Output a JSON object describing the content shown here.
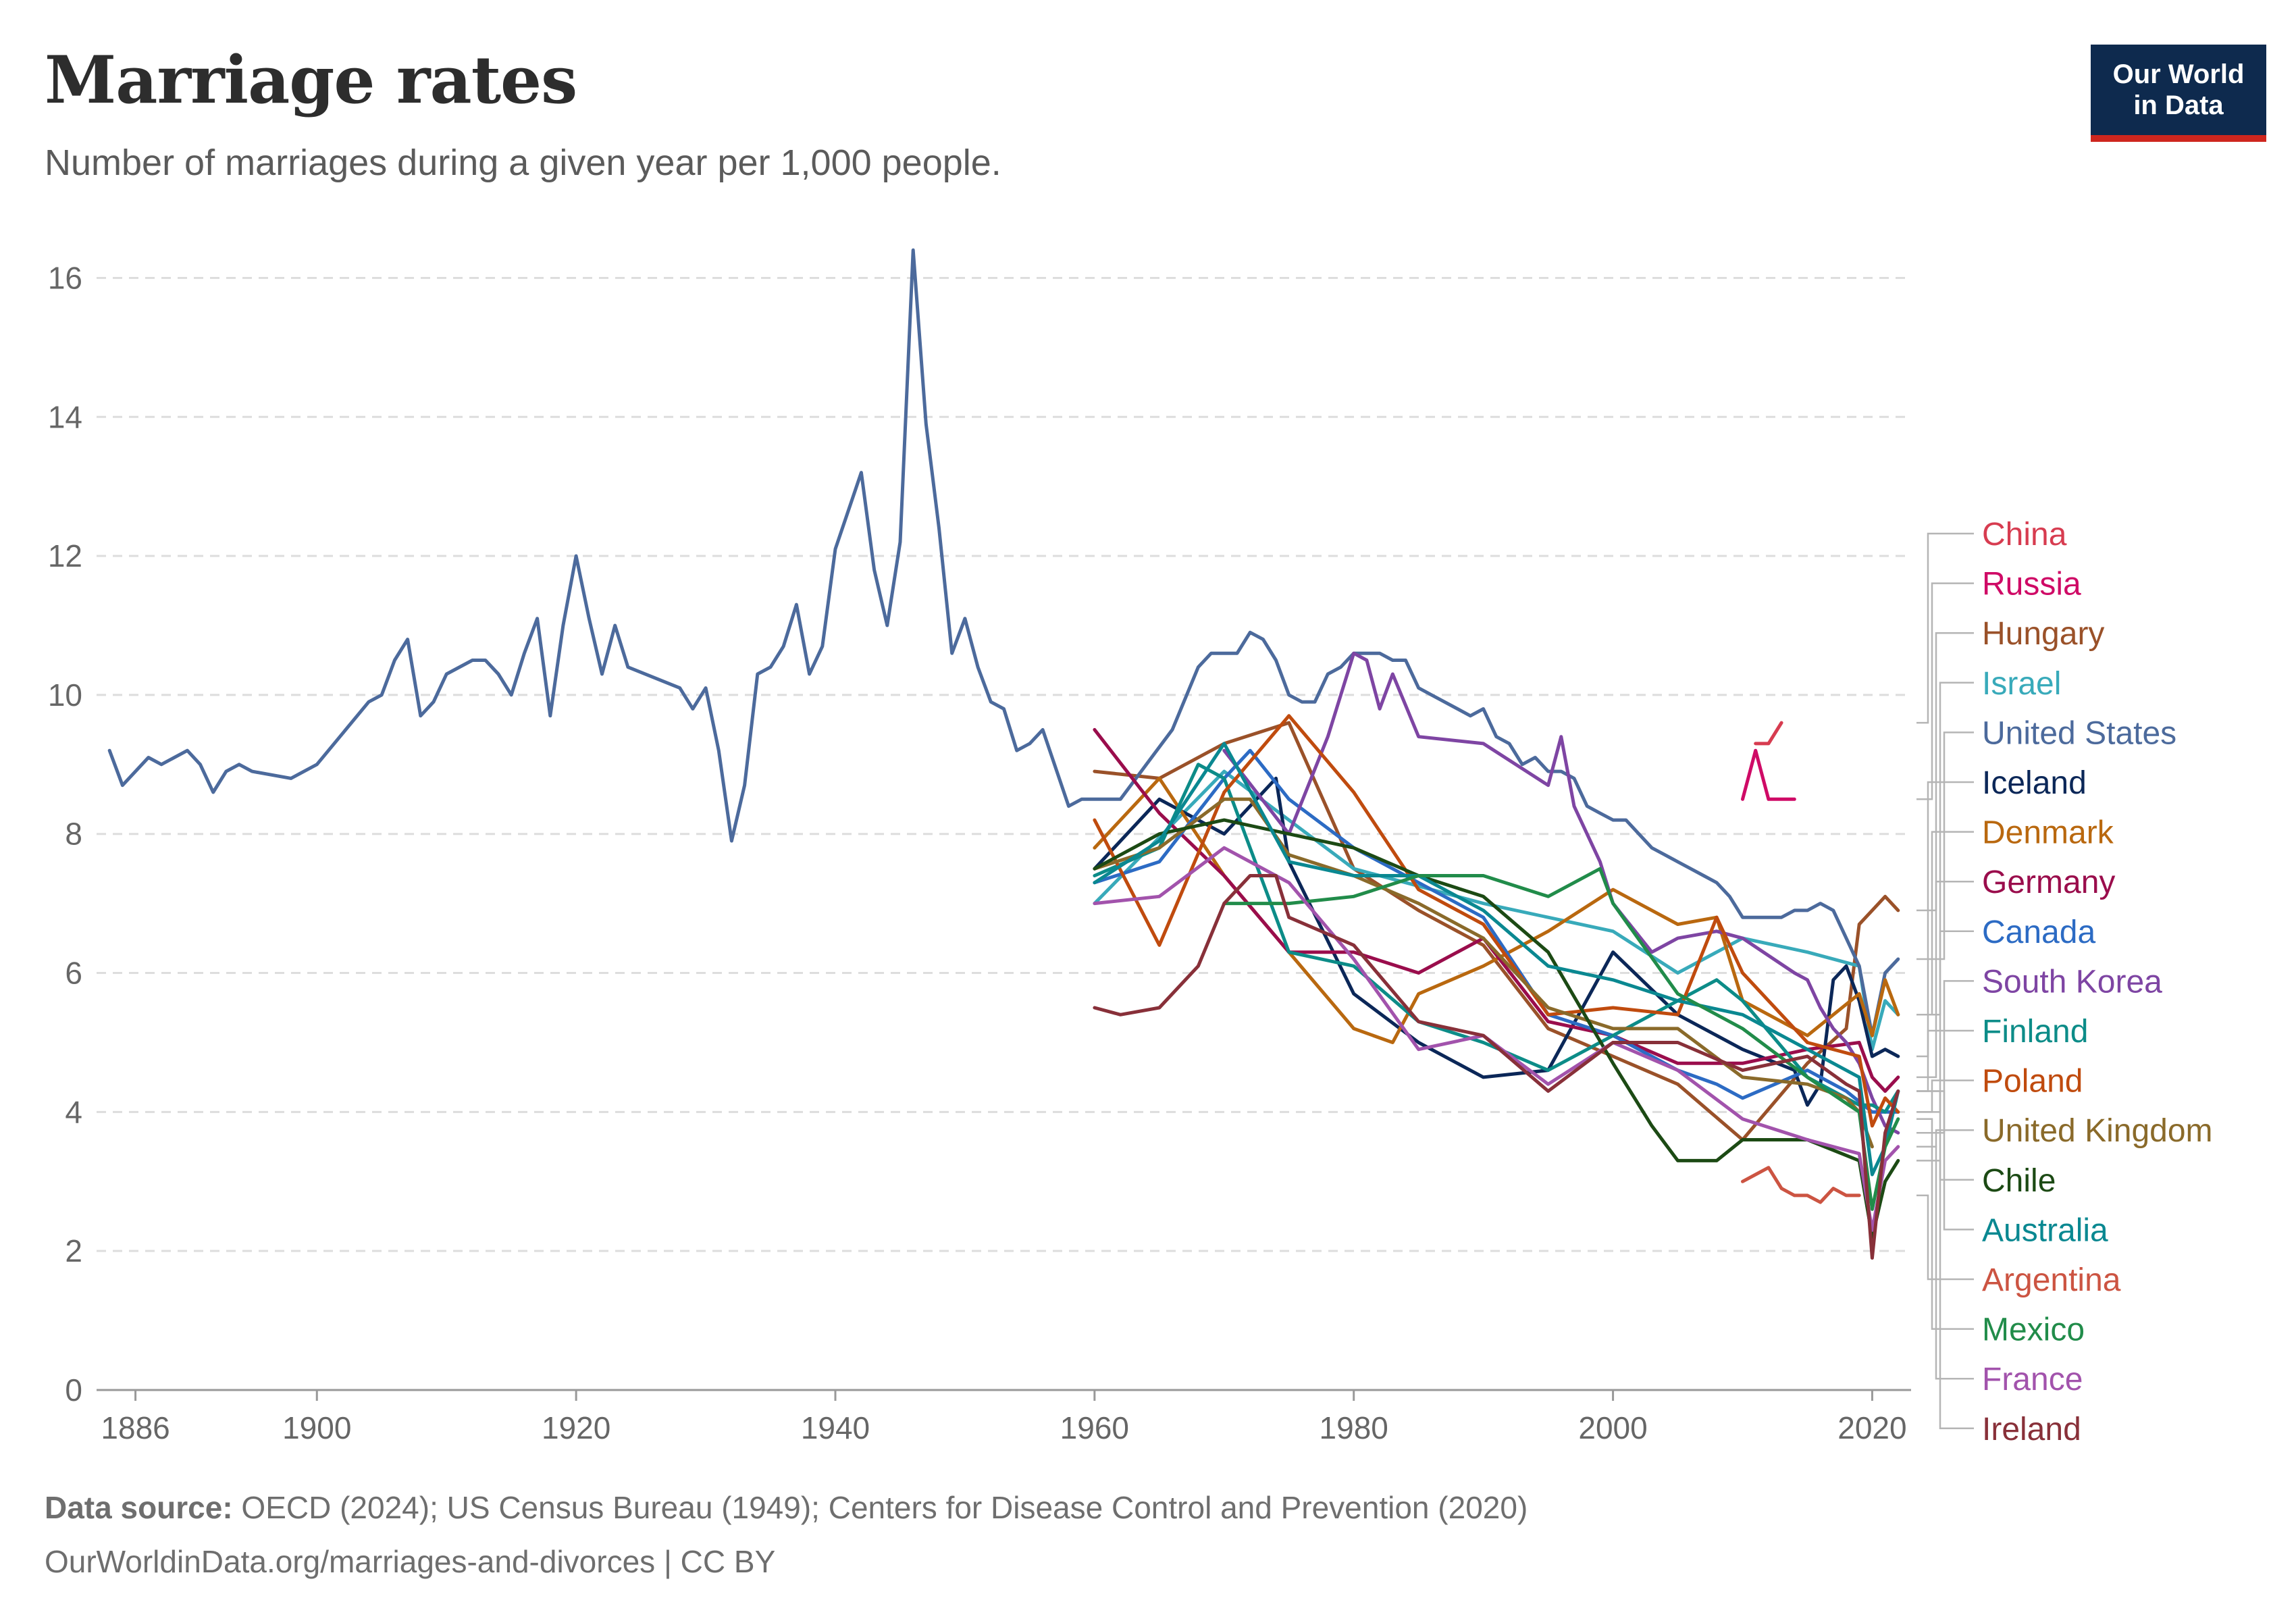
{
  "header": {
    "title": "Marriage rates",
    "subtitle": "Number of marriages during a given year per 1,000 people.",
    "logo_line1": "Our World",
    "logo_line2": "in Data"
  },
  "footer": {
    "source_label": "Data source:",
    "source_text": " OECD (2024); US Census Bureau (1949); Centers for Disease Control and Prevention (2020)",
    "url_text": "OurWorldinData.org/marriages-and-divorces | CC BY"
  },
  "colors": {
    "axis": "#999999",
    "grid": "#dddddd",
    "logo_bg": "#0e2a4e",
    "logo_accent": "#ce261e"
  },
  "chart_data": {
    "type": "line",
    "title": "Marriage rates",
    "subtitle": "Number of marriages during a given year per 1,000 people.",
    "xlim": [
      1883,
      2023
    ],
    "ylim": [
      0,
      16.5
    ],
    "x_ticks": [
      1886,
      1900,
      1920,
      1940,
      1960,
      1980,
      2000,
      2020
    ],
    "y_ticks": [
      0,
      2,
      4,
      6,
      8,
      10,
      12,
      14,
      16
    ],
    "grid": "horizontal dashed",
    "legend": "right-side labels",
    "series": [
      {
        "name": "China",
        "color": "#d73c50",
        "x": [
          2011,
          2012,
          2013
        ],
        "y": [
          9.3,
          9.3,
          9.6
        ]
      },
      {
        "name": "Russia",
        "color": "#cf0a66",
        "x": [
          2010,
          2011,
          2012,
          2013,
          2014
        ],
        "y": [
          8.5,
          9.2,
          8.5,
          8.5,
          8.5
        ]
      },
      {
        "name": "Hungary",
        "color": "#9a5129",
        "x": [
          1960,
          1965,
          1970,
          1975,
          1980,
          1985,
          1990,
          1995,
          2000,
          2005,
          2010,
          2015,
          2018,
          2019,
          2020,
          2021,
          2022
        ],
        "y": [
          8.9,
          8.8,
          9.3,
          9.6,
          7.5,
          6.9,
          6.4,
          5.2,
          4.8,
          4.4,
          3.6,
          4.7,
          5.2,
          6.7,
          6.9,
          7.1,
          6.9
        ]
      },
      {
        "name": "Israel",
        "color": "#38aaba",
        "x": [
          1960,
          1970,
          1980,
          1990,
          1995,
          2000,
          2005,
          2010,
          2015,
          2019,
          2020,
          2021,
          2022
        ],
        "y": [
          7.0,
          8.9,
          7.5,
          7.0,
          6.8,
          6.6,
          6.0,
          6.5,
          6.3,
          6.1,
          4.9,
          5.6,
          5.4
        ]
      },
      {
        "name": "United States",
        "color": "#4c6a9c",
        "x": [
          1884,
          1885,
          1887,
          1888,
          1890,
          1891,
          1892,
          1893,
          1894,
          1895,
          1898,
          1900,
          1904,
          1905,
          1906,
          1907,
          1908,
          1909,
          1910,
          1912,
          1913,
          1914,
          1915,
          1916,
          1917,
          1918,
          1919,
          1920,
          1921,
          1922,
          1923,
          1924,
          1928,
          1929,
          1930,
          1931,
          1932,
          1933,
          1934,
          1935,
          1936,
          1937,
          1938,
          1939,
          1940,
          1942,
          1943,
          1944,
          1945,
          1946,
          1947,
          1948,
          1949,
          1950,
          1951,
          1952,
          1953,
          1954,
          1955,
          1956,
          1958,
          1959,
          1960,
          1962,
          1964,
          1966,
          1968,
          1969,
          1970,
          1971,
          1972,
          1973,
          1974,
          1975,
          1976,
          1977,
          1978,
          1979,
          1980,
          1981,
          1982,
          1983,
          1984,
          1985,
          1986,
          1988,
          1989,
          1990,
          1991,
          1992,
          1993,
          1994,
          1995,
          1996,
          1997,
          1998,
          1999,
          2000,
          2001,
          2002,
          2003,
          2004,
          2005,
          2006,
          2007,
          2008,
          2009,
          2010,
          2011,
          2012,
          2013,
          2014,
          2015,
          2016,
          2017,
          2018,
          2019,
          2020,
          2021,
          2022
        ],
        "y": [
          9.2,
          8.7,
          9.1,
          9.0,
          9.2,
          9.0,
          8.6,
          8.9,
          9.0,
          8.9,
          8.8,
          9.0,
          9.9,
          10.0,
          10.5,
          10.8,
          9.7,
          9.9,
          10.3,
          10.5,
          10.5,
          10.3,
          10.0,
          10.6,
          11.1,
          9.7,
          11.0,
          12.0,
          11.1,
          10.3,
          11.0,
          10.4,
          10.1,
          9.8,
          10.1,
          9.2,
          7.9,
          8.7,
          10.3,
          10.4,
          10.7,
          11.3,
          10.3,
          10.7,
          12.1,
          13.2,
          11.8,
          11.0,
          12.2,
          16.4,
          13.9,
          12.4,
          10.6,
          11.1,
          10.4,
          9.9,
          9.8,
          9.2,
          9.3,
          9.5,
          8.4,
          8.5,
          8.5,
          8.5,
          9.0,
          9.5,
          10.4,
          10.6,
          10.6,
          10.6,
          10.9,
          10.8,
          10.5,
          10.0,
          9.9,
          9.9,
          10.3,
          10.4,
          10.6,
          10.6,
          10.6,
          10.5,
          10.5,
          10.1,
          10.0,
          9.8,
          9.7,
          9.8,
          9.4,
          9.3,
          9.0,
          9.1,
          8.9,
          8.9,
          8.8,
          8.4,
          8.3,
          8.2,
          8.2,
          8.0,
          7.8,
          7.7,
          7.6,
          7.5,
          7.4,
          7.3,
          7.1,
          6.8,
          6.8,
          6.8,
          6.8,
          6.9,
          6.9,
          7.0,
          6.9,
          6.5,
          6.1,
          5.1,
          6.0,
          6.2
        ]
      },
      {
        "name": "Iceland",
        "color": "#0b2758",
        "x": [
          1960,
          1965,
          1970,
          1974,
          1975,
          1980,
          1985,
          1990,
          1995,
          2000,
          2005,
          2010,
          2014,
          2015,
          2016,
          2017,
          2018,
          2019,
          2020,
          2021,
          2022
        ],
        "y": [
          7.5,
          8.5,
          8.0,
          8.8,
          7.6,
          5.7,
          5.0,
          4.5,
          4.6,
          6.3,
          5.4,
          4.9,
          4.6,
          4.1,
          4.4,
          5.9,
          6.1,
          5.6,
          4.8,
          4.9,
          4.8
        ]
      },
      {
        "name": "Denmark",
        "color": "#b9680f",
        "x": [
          1960,
          1965,
          1970,
          1975,
          1980,
          1983,
          1985,
          1990,
          1995,
          2000,
          2005,
          2008,
          2010,
          2015,
          2019,
          2020,
          2021,
          2022
        ],
        "y": [
          7.8,
          8.8,
          7.4,
          6.3,
          5.2,
          5.0,
          5.7,
          6.1,
          6.6,
          7.2,
          6.7,
          6.8,
          5.6,
          5.1,
          5.7,
          5.1,
          5.9,
          5.4
        ]
      },
      {
        "name": "Germany",
        "color": "#9a0d4c",
        "x": [
          1960,
          1965,
          1970,
          1975,
          1980,
          1985,
          1990,
          1995,
          2000,
          2005,
          2010,
          2015,
          2019,
          2020,
          2021,
          2022
        ],
        "y": [
          9.5,
          8.3,
          7.4,
          6.3,
          6.3,
          6.0,
          6.5,
          5.3,
          5.1,
          4.7,
          4.7,
          4.9,
          5.0,
          4.5,
          4.3,
          4.5
        ]
      },
      {
        "name": "Canada",
        "color": "#2c6bc4",
        "x": [
          1960,
          1965,
          1970,
          1972,
          1975,
          1980,
          1985,
          1990,
          1995,
          2000,
          2005,
          2008,
          2010,
          2015,
          2018,
          2020,
          2021,
          2022
        ],
        "y": [
          7.3,
          7.6,
          8.8,
          9.2,
          8.5,
          7.8,
          7.3,
          6.8,
          5.4,
          5.1,
          4.6,
          4.4,
          4.2,
          4.6,
          4.3,
          4.0,
          4.0,
          4.0
        ]
      },
      {
        "name": "South Korea",
        "color": "#7e45a3",
        "x": [
          1970,
          1975,
          1978,
          1980,
          1981,
          1982,
          1983,
          1985,
          1990,
          1995,
          1996,
          1997,
          1999,
          2000,
          2003,
          2005,
          2008,
          2010,
          2014,
          2015,
          2016,
          2017,
          2018,
          2019,
          2020,
          2021,
          2022
        ],
        "y": [
          9.2,
          8.0,
          9.4,
          10.6,
          10.5,
          9.8,
          10.3,
          9.4,
          9.3,
          8.7,
          9.4,
          8.4,
          7.6,
          7.0,
          6.3,
          6.5,
          6.6,
          6.5,
          6.0,
          5.9,
          5.5,
          5.2,
          5.0,
          4.7,
          4.2,
          3.8,
          3.7
        ]
      },
      {
        "name": "Finland",
        "color": "#0c8c88",
        "x": [
          1960,
          1965,
          1968,
          1970,
          1975,
          1980,
          1985,
          1990,
          1995,
          2000,
          2005,
          2008,
          2010,
          2015,
          2019,
          2020,
          2021,
          2022
        ],
        "y": [
          7.4,
          7.8,
          9.0,
          8.8,
          6.3,
          6.1,
          5.3,
          5.0,
          4.6,
          5.1,
          5.6,
          5.9,
          5.6,
          4.5,
          4.1,
          4.1,
          4.0,
          4.3
        ]
      },
      {
        "name": "Poland",
        "color": "#c04b0e",
        "x": [
          1960,
          1965,
          1970,
          1975,
          1980,
          1985,
          1990,
          1995,
          2000,
          2005,
          2008,
          2010,
          2015,
          2019,
          2020,
          2021,
          2022
        ],
        "y": [
          8.2,
          6.4,
          8.6,
          9.7,
          8.6,
          7.2,
          6.7,
          5.4,
          5.5,
          5.4,
          6.8,
          6.0,
          5.0,
          4.8,
          3.8,
          4.2,
          4.0
        ]
      },
      {
        "name": "United Kingdom",
        "color": "#8a6a2a",
        "x": [
          1960,
          1965,
          1970,
          1972,
          1975,
          1980,
          1985,
          1990,
          1995,
          2000,
          2005,
          2010,
          2015,
          2018,
          2019,
          2020
        ],
        "y": [
          7.5,
          7.8,
          8.5,
          8.5,
          7.7,
          7.4,
          7.0,
          6.5,
          5.5,
          5.2,
          5.2,
          4.5,
          4.4,
          4.2,
          4.0,
          3.5
        ]
      },
      {
        "name": "Chile",
        "color": "#1c4a14",
        "x": [
          1960,
          1965,
          1970,
          1975,
          1980,
          1985,
          1990,
          1995,
          2000,
          2003,
          2005,
          2008,
          2010,
          2015,
          2019,
          2020,
          2021,
          2022
        ],
        "y": [
          7.5,
          8.0,
          8.2,
          8.0,
          7.8,
          7.4,
          7.1,
          6.3,
          4.7,
          3.8,
          3.3,
          3.3,
          3.6,
          3.6,
          3.3,
          2.2,
          3.0,
          3.3
        ]
      },
      {
        "name": "Australia",
        "color": "#0a8891",
        "x": [
          1960,
          1965,
          1970,
          1975,
          1980,
          1985,
          1990,
          1995,
          2000,
          2005,
          2010,
          2015,
          2019,
          2020,
          2021,
          2022
        ],
        "y": [
          7.3,
          7.9,
          9.3,
          7.6,
          7.4,
          7.4,
          6.9,
          6.1,
          5.9,
          5.6,
          5.4,
          4.9,
          4.5,
          3.1,
          3.5,
          4.3
        ]
      },
      {
        "name": "Argentina",
        "color": "#cc5442",
        "x": [
          2010,
          2011,
          2012,
          2013,
          2014,
          2015,
          2016,
          2017,
          2018,
          2019
        ],
        "y": [
          3.0,
          3.1,
          3.2,
          2.9,
          2.8,
          2.8,
          2.7,
          2.9,
          2.8,
          2.8
        ]
      },
      {
        "name": "Mexico",
        "color": "#218c4a",
        "x": [
          1970,
          1975,
          1980,
          1985,
          1990,
          1995,
          1999,
          2000,
          2005,
          2010,
          2015,
          2019,
          2020,
          2021,
          2022
        ],
        "y": [
          7.0,
          7.0,
          7.1,
          7.4,
          7.4,
          7.1,
          7.5,
          7.0,
          5.7,
          5.2,
          4.5,
          4.0,
          2.6,
          3.5,
          3.9
        ]
      },
      {
        "name": "France",
        "color": "#a253ac",
        "x": [
          1960,
          1965,
          1970,
          1975,
          1980,
          1985,
          1990,
          1995,
          2000,
          2005,
          2010,
          2015,
          2019,
          2020,
          2021,
          2022
        ],
        "y": [
          7.0,
          7.1,
          7.8,
          7.3,
          6.2,
          4.9,
          5.1,
          4.4,
          5.0,
          4.6,
          3.9,
          3.6,
          3.4,
          2.3,
          3.3,
          3.5
        ]
      },
      {
        "name": "Ireland",
        "color": "#883039",
        "x": [
          1960,
          1962,
          1965,
          1968,
          1970,
          1972,
          1974,
          1975,
          1980,
          1985,
          1990,
          1995,
          2000,
          2005,
          2010,
          2015,
          2018,
          2019,
          2020,
          2021,
          2022
        ],
        "y": [
          5.5,
          5.4,
          5.5,
          6.1,
          7.0,
          7.4,
          7.4,
          6.8,
          6.4,
          5.3,
          5.1,
          4.3,
          5.0,
          5.0,
          4.6,
          4.8,
          4.4,
          4.3,
          1.9,
          3.7,
          4.3
        ]
      }
    ]
  }
}
